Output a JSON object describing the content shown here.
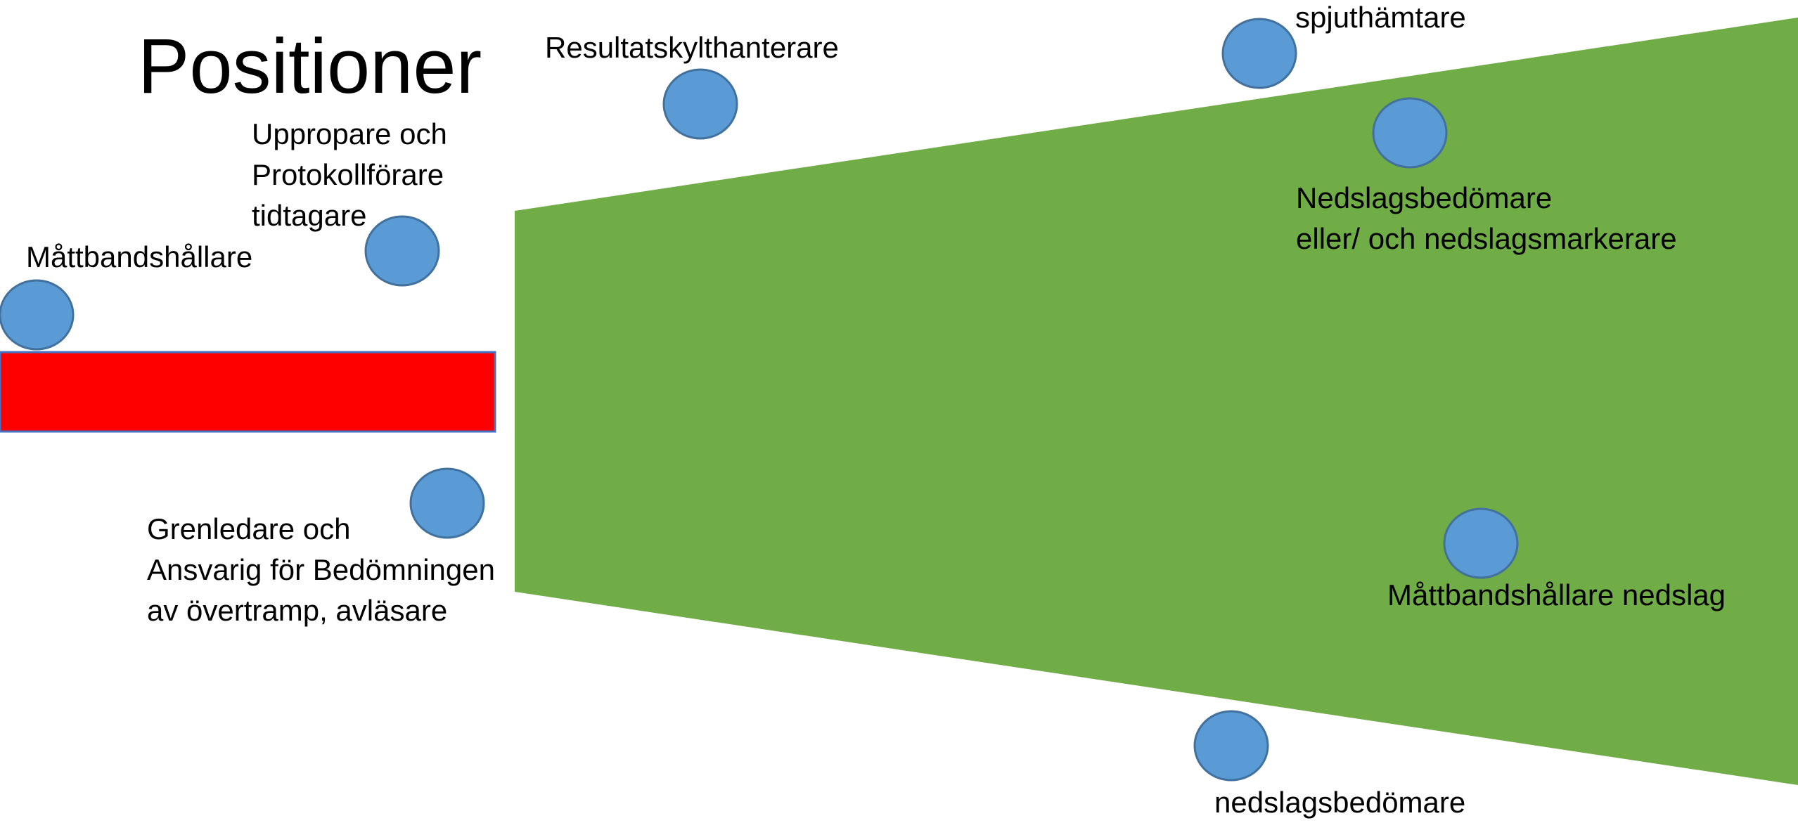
{
  "title": "Positioner",
  "colors": {
    "field": "#70ad47",
    "runway": "#ff0000",
    "runway_border": "#4472c4",
    "marker_fill": "#5b9bd5",
    "marker_border": "#41719c",
    "background": "#ffffff",
    "text": "#000000"
  },
  "labels": {
    "resultatskylt": "Resultatskylthanterare",
    "spjuthamtare": "spjuthämtare",
    "uppropare": {
      "line1": "Uppropare och",
      "line2": "Protokollförare",
      "line3": "tidtagare"
    },
    "mattband_start": "Måttbandshållare",
    "nedslagsbedomare_top": {
      "line1": "Nedslagsbedömare",
      "line2": "eller/ och nedslagsmarkerare"
    },
    "grenledare": {
      "line1": "Grenledare och",
      "line2": "Ansvarig för Bedömningen",
      "line3": "av övertramp, avläsare"
    },
    "mattband_nedslag": "Måttbandshållare nedslag",
    "nedslagsbedomare_bottom": "nedslagsbedömare"
  }
}
